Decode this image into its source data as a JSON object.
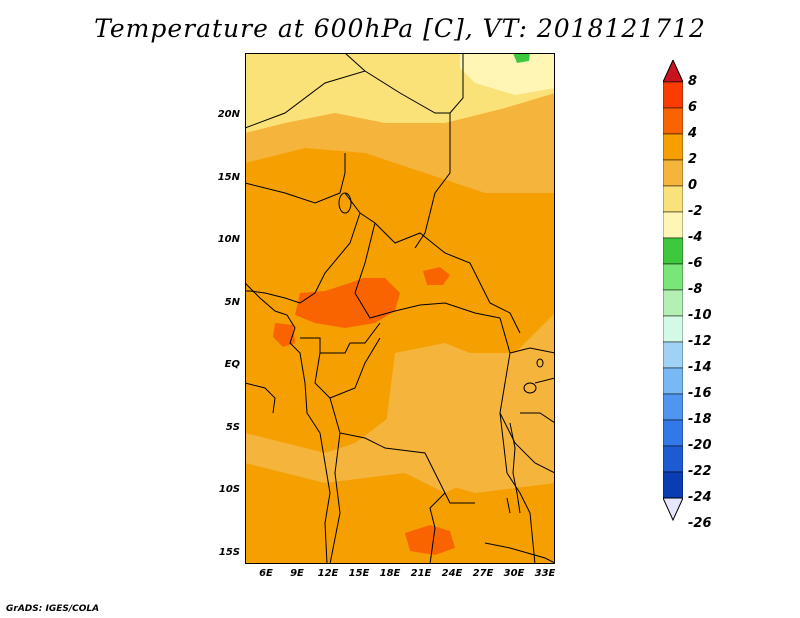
{
  "title": "Temperature at 600hPa [C], VT: 2018121712",
  "credit": "GrADS: IGES/COLA",
  "map": {
    "lat_labels": [
      "20N",
      "15N",
      "10N",
      "5N",
      "EQ",
      "5S",
      "10S",
      "15S"
    ],
    "lon_labels": [
      "6E",
      "9E",
      "12E",
      "15E",
      "18E",
      "21E",
      "24E",
      "27E",
      "30E",
      "33E"
    ]
  },
  "colorbar": {
    "labels": [
      "8",
      "6",
      "4",
      "2",
      "0",
      "-2",
      "-4",
      "-6",
      "-8",
      "-10",
      "-12",
      "-14",
      "-16",
      "-18",
      "-20",
      "-22",
      "-24",
      "-26"
    ],
    "colors": [
      "#c8141e",
      "#fa3c00",
      "#fa6400",
      "#f5a000",
      "#f5b43c",
      "#fae278",
      "#fff5b4",
      "#3ec83e",
      "#78e678",
      "#b4f0b4",
      "#d2fae6",
      "#a0d2f5",
      "#78b9f5",
      "#5096f0",
      "#3278e6",
      "#1e5ad2",
      "#0a3cb4",
      "#141e78"
    ]
  }
}
